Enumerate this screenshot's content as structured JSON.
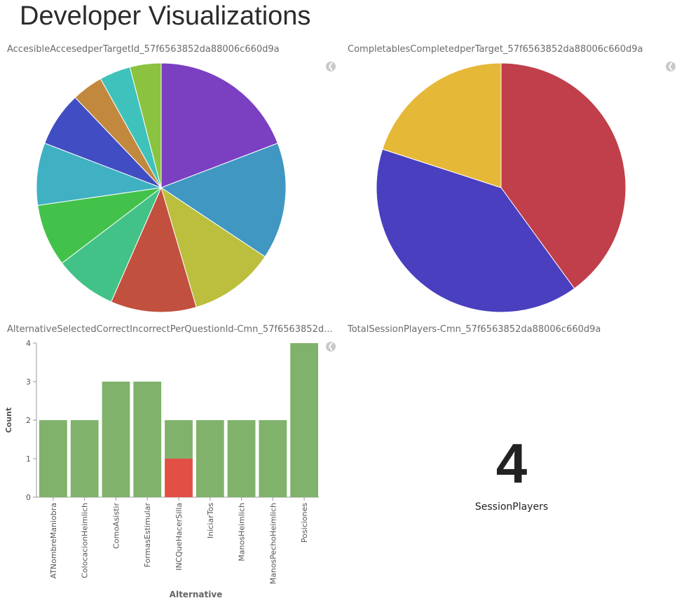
{
  "page": {
    "title": "Developer Visualizations"
  },
  "panels": [
    {
      "title": "AccesibleAccesedperTargetId_57f6563852da88006c660d9a",
      "collapse_icon": "chevron-left-icon"
    },
    {
      "title": "CompletablesCompletedperTarget_57f6563852da88006c660d9a",
      "collapse_icon": "chevron-left-icon"
    },
    {
      "title": "AlternativeSelectedCorrectIncorrectPerQuestionId-Cmn_57f6563852d...",
      "collapse_icon": "chevron-left-icon"
    },
    {
      "title": "TotalSessionPlayers-Cmn_57f6563852da88006c660d9a"
    }
  ],
  "chart_data": [
    {
      "type": "pie",
      "title": "AccesibleAccesedperTargetId_57f6563852da88006c660d9a",
      "values": [
        19,
        15,
        11,
        11,
        8,
        8,
        8,
        7,
        4,
        4,
        4
      ],
      "colors": [
        "#7b3fc2",
        "#3f97c2",
        "#bcbf3e",
        "#c2503e",
        "#42c287",
        "#42c24a",
        "#3fb1c2",
        "#414dc2",
        "#c2883e",
        "#3fc2bc",
        "#8bc23f"
      ]
    },
    {
      "type": "pie",
      "title": "CompletablesCompletedperTarget_57f6563852da88006c660d9a",
      "values": [
        40,
        40,
        20
      ],
      "colors": [
        "#c03f4a",
        "#493fbf",
        "#e6b837"
      ]
    },
    {
      "type": "bar",
      "title": "AlternativeSelectedCorrectIncorrectPerQuestionId-Cmn_57f6563852d...",
      "xlabel": "Alternative",
      "ylabel": "Count",
      "ylim": [
        0,
        4
      ],
      "yticks": [
        "0",
        "1",
        "2",
        "3",
        "4"
      ],
      "categories": [
        "ATNombreManiobra",
        "ColocacionHeimlich",
        "ComoAsistir",
        "FormasEstimular",
        "INCQueHacerSilla",
        "IniciarTos",
        "ManosHeimlich",
        "ManosPechoHeimlich",
        "Posiciones"
      ],
      "series": [
        {
          "values": [
            2,
            2,
            3,
            3,
            1,
            2,
            2,
            2,
            4
          ],
          "color": "#80b26b"
        },
        {
          "values": [
            0,
            0,
            0,
            0,
            1,
            0,
            0,
            0,
            0
          ],
          "color": "#e24f45"
        }
      ]
    }
  ],
  "metric": {
    "value": "4",
    "label": "SessionPlayers"
  }
}
